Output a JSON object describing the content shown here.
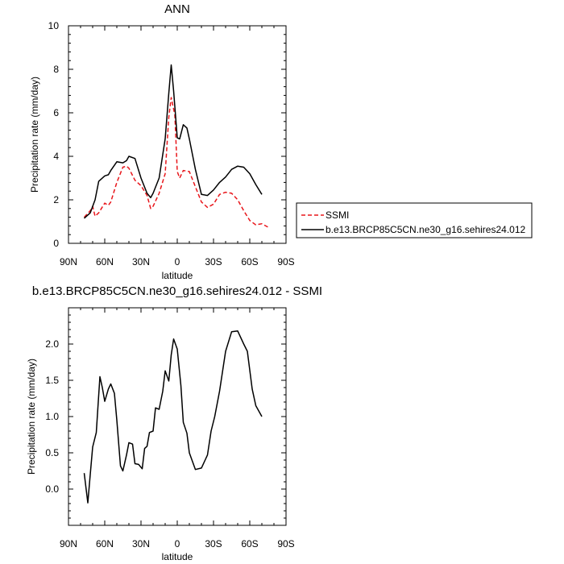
{
  "chart_data": [
    {
      "type": "line",
      "title": "ANN",
      "xlabel": "latitude",
      "ylabel": "Precipitation rate (mm/day)",
      "xlim": [
        90,
        -90
      ],
      "ylim": [
        0,
        10
      ],
      "x_ticks": [
        90,
        60,
        30,
        0,
        -30,
        -60,
        -90
      ],
      "x_tick_labels": [
        "90N",
        "60N",
        "30N",
        "0",
        "30S",
        "60S",
        "90S"
      ],
      "y_ticks": [
        0,
        2,
        4,
        6,
        8,
        10
      ],
      "y_tick_labels": [
        "0",
        "2",
        "4",
        "6",
        "8",
        "10"
      ],
      "legend_position": "right",
      "series": [
        {
          "name": "SSMI",
          "color": "#e8161b",
          "style": "dashed",
          "x": [
            77,
            72,
            70,
            68,
            65,
            60,
            57,
            55,
            50,
            45,
            42,
            40,
            35,
            30,
            25,
            22,
            20,
            15,
            10,
            7,
            5,
            2,
            0,
            -2,
            -5,
            -10,
            -15,
            -20,
            -25,
            -30,
            -35,
            -40,
            -45,
            -50,
            -55,
            -60,
            -65,
            -70,
            -75
          ],
          "y": [
            1.2,
            1.5,
            1.7,
            1.25,
            1.4,
            1.85,
            1.75,
            1.9,
            2.8,
            3.5,
            3.55,
            3.45,
            2.9,
            2.65,
            2.2,
            1.6,
            1.7,
            2.3,
            3.2,
            5.8,
            6.7,
            5.9,
            3.3,
            3.0,
            3.35,
            3.3,
            2.6,
            1.9,
            1.65,
            1.8,
            2.25,
            2.35,
            2.3,
            2.0,
            1.5,
            1.05,
            0.85,
            0.9,
            0.75
          ]
        },
        {
          "name": "b.e13.BRCP85C5CN.ne30_g16.sehires24.012",
          "color": "#000000",
          "style": "solid",
          "x": [
            77,
            72,
            68,
            65,
            60,
            57,
            55,
            50,
            45,
            42,
            40,
            35,
            30,
            25,
            22,
            20,
            15,
            10,
            7,
            5,
            3,
            0,
            -2,
            -5,
            -8,
            -10,
            -15,
            -20,
            -25,
            -30,
            -35,
            -40,
            -45,
            -50,
            -55,
            -60,
            -65,
            -70
          ],
          "y": [
            1.15,
            1.4,
            2.0,
            2.85,
            3.1,
            3.15,
            3.35,
            3.75,
            3.7,
            3.8,
            4.0,
            3.9,
            3.0,
            2.3,
            2.1,
            2.3,
            3.0,
            4.8,
            6.9,
            8.2,
            7.0,
            4.85,
            4.8,
            5.45,
            5.3,
            4.8,
            3.4,
            2.25,
            2.2,
            2.45,
            2.8,
            3.05,
            3.4,
            3.55,
            3.5,
            3.2,
            2.7,
            2.25
          ]
        }
      ]
    },
    {
      "type": "line",
      "title": "b.e13.BRCP85C5CN.ne30_g16.sehires24.012 - SSMI",
      "xlabel": "latitude",
      "ylabel": "Precipitation rate (mm/day)",
      "xlim": [
        90,
        -90
      ],
      "ylim": [
        -0.5,
        2.5
      ],
      "x_ticks": [
        90,
        60,
        30,
        0,
        -30,
        -60,
        -90
      ],
      "x_tick_labels": [
        "90N",
        "60N",
        "30N",
        "0",
        "30S",
        "60S",
        "90S"
      ],
      "y_ticks": [
        0,
        0.5,
        1,
        1.5,
        2
      ],
      "y_tick_labels": [
        "0.0",
        "0.5",
        "1.0",
        "1.5",
        "2.0"
      ],
      "series": [
        {
          "color": "#000000",
          "style": "solid",
          "x": [
            77,
            74,
            72,
            70,
            67,
            64,
            62,
            60,
            57,
            55,
            52,
            50,
            47,
            45,
            42,
            40,
            37,
            35,
            32,
            29,
            27,
            25,
            23,
            20,
            18,
            15,
            12,
            10,
            7,
            5,
            3,
            0,
            -3,
            -5,
            -8,
            -10,
            -15,
            -20,
            -25,
            -28,
            -31,
            -35,
            -40,
            -45,
            -50,
            -55,
            -58,
            -62,
            -65,
            -70
          ],
          "y": [
            0.22,
            -0.19,
            0.2,
            0.58,
            0.78,
            1.55,
            1.4,
            1.21,
            1.38,
            1.45,
            1.32,
            0.95,
            0.32,
            0.25,
            0.47,
            0.64,
            0.62,
            0.35,
            0.34,
            0.28,
            0.56,
            0.59,
            0.78,
            0.8,
            1.12,
            1.1,
            1.35,
            1.63,
            1.49,
            1.85,
            2.07,
            1.93,
            1.43,
            0.92,
            0.77,
            0.5,
            0.27,
            0.29,
            0.47,
            0.8,
            1.0,
            1.35,
            1.9,
            2.17,
            2.18,
            2.0,
            1.9,
            1.38,
            1.15,
            1.0
          ]
        }
      ]
    }
  ]
}
